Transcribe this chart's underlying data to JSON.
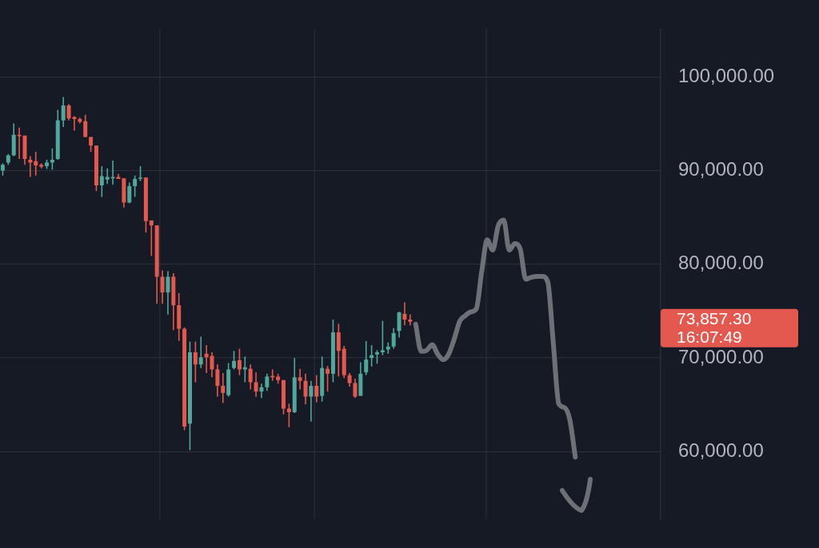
{
  "chart_data": {
    "type": "candlestick",
    "categories": [
      null,
      null,
      null,
      null,
      null,
      null,
      null,
      null,
      null,
      null,
      null,
      null,
      null,
      null,
      null,
      null,
      null,
      null,
      null,
      null,
      null,
      null,
      null,
      null,
      null,
      null,
      null,
      null,
      null,
      null,
      null,
      null,
      null,
      null,
      null,
      null,
      null,
      null,
      null,
      null,
      null,
      null,
      null,
      null,
      null,
      null,
      null,
      null,
      null,
      null,
      null,
      null,
      null,
      null,
      null,
      null,
      null,
      null,
      null,
      null,
      null,
      null,
      null,
      null,
      null,
      null,
      null,
      null,
      null,
      null,
      null,
      null,
      null,
      null,
      null,
      null,
      null,
      null,
      null,
      null,
      null,
      null,
      null,
      null,
      null,
      null,
      null,
      null,
      null,
      null,
      null,
      null,
      null,
      null,
      null,
      null,
      null,
      null,
      null,
      null,
      null,
      null,
      null,
      null,
      null,
      null,
      null,
      null,
      null,
      null,
      null,
      null,
      null,
      null,
      null,
      null,
      null,
      null,
      null,
      null
    ],
    "ohlc": [
      [
        89990,
        90770,
        89470,
        90620
      ],
      [
        90850,
        91760,
        90620,
        91610
      ],
      [
        91610,
        95030,
        91530,
        93810
      ],
      [
        93810,
        94580,
        91230,
        93660
      ],
      [
        93730,
        93730,
        90620,
        91230
      ],
      [
        91150,
        91530,
        89320,
        90850
      ],
      [
        91000,
        91990,
        89470,
        90540
      ],
      [
        90620,
        90770,
        90240,
        90390
      ],
      [
        90470,
        91150,
        90160,
        90850
      ],
      [
        90850,
        92370,
        90080,
        91150
      ],
      [
        91230,
        96480,
        91150,
        95340
      ],
      [
        95340,
        97850,
        94650,
        96940
      ],
      [
        96940,
        97090,
        95340,
        95570
      ],
      [
        95720,
        95800,
        94270,
        95490
      ],
      [
        95490,
        95640,
        95030,
        95190
      ],
      [
        95260,
        95950,
        93580,
        93580
      ],
      [
        93580,
        93580,
        91990,
        92670
      ],
      [
        92670,
        92670,
        87800,
        88410
      ],
      [
        88410,
        90470,
        87190,
        89400
      ],
      [
        89030,
        90240,
        88560,
        89320
      ],
      [
        89170,
        91070,
        88480,
        89320
      ],
      [
        89320,
        89630,
        89090,
        89090
      ],
      [
        89170,
        89170,
        86050,
        86580
      ],
      [
        86580,
        88710,
        86500,
        88330
      ],
      [
        88330,
        89470,
        87190,
        89090
      ],
      [
        89170,
        90470,
        88860,
        89250
      ],
      [
        89250,
        89250,
        83380,
        84600
      ],
      [
        84670,
        84670,
        80870,
        84140
      ],
      [
        84140,
        84140,
        75770,
        78660
      ],
      [
        78660,
        79340,
        75770,
        76980
      ],
      [
        76980,
        79270,
        74620,
        78660
      ],
      [
        78660,
        79040,
        72950,
        75610
      ],
      [
        75610,
        76910,
        71800,
        73100
      ],
      [
        73100,
        73250,
        62280,
        62670
      ],
      [
        62970,
        71730,
        60150,
        70590
      ],
      [
        70590,
        71730,
        67390,
        69290
      ],
      [
        69290,
        72260,
        68910,
        70050
      ],
      [
        70430,
        71350,
        68380,
        70050
      ],
      [
        70210,
        70590,
        67920,
        68760
      ],
      [
        68760,
        69290,
        65860,
        67010
      ],
      [
        67010,
        68380,
        65180,
        66250
      ],
      [
        66020,
        69440,
        65860,
        68760
      ],
      [
        68910,
        70740,
        68760,
        69670
      ],
      [
        69750,
        70970,
        68150,
        68760
      ],
      [
        68760,
        70130,
        67390,
        68990
      ],
      [
        68830,
        69290,
        66630,
        67390
      ],
      [
        67390,
        68450,
        65860,
        66400
      ],
      [
        66400,
        67240,
        65710,
        66860
      ],
      [
        66860,
        68300,
        66480,
        68000
      ],
      [
        68070,
        68760,
        67540,
        67920
      ],
      [
        68000,
        68300,
        67240,
        67620
      ],
      [
        67620,
        67620,
        63960,
        64570
      ],
      [
        64570,
        65100,
        62590,
        64190
      ],
      [
        64190,
        69980,
        64110,
        67920
      ],
      [
        67920,
        68830,
        66630,
        67540
      ],
      [
        67540,
        68300,
        65030,
        65860
      ],
      [
        65860,
        67540,
        63200,
        67010
      ],
      [
        67010,
        68150,
        65250,
        65860
      ],
      [
        65940,
        70130,
        65330,
        68910
      ],
      [
        68830,
        69140,
        66400,
        68300
      ],
      [
        68300,
        74090,
        67390,
        72720
      ],
      [
        72720,
        73630,
        68000,
        70740
      ],
      [
        70970,
        71270,
        67840,
        68150
      ],
      [
        68150,
        68380,
        66930,
        67310
      ],
      [
        67310,
        67770,
        65710,
        65860
      ],
      [
        65940,
        69520,
        65940,
        68300
      ],
      [
        68450,
        71800,
        68150,
        69820
      ],
      [
        69980,
        71350,
        69060,
        70280
      ],
      [
        70360,
        70810,
        69370,
        70590
      ],
      [
        70590,
        73940,
        70280,
        70810
      ],
      [
        70890,
        71650,
        70430,
        71200
      ],
      [
        71200,
        73180,
        70970,
        72640
      ],
      [
        72870,
        74930,
        72180,
        74850
      ],
      [
        74700,
        75920,
        73480,
        74090
      ],
      [
        74090,
        74620,
        73480,
        73857.3
      ],
      null,
      null,
      null,
      null,
      null,
      null,
      null,
      null,
      null,
      null,
      null,
      null,
      null,
      null,
      null,
      null,
      null,
      null,
      null,
      null,
      null,
      null,
      null,
      null,
      null,
      null,
      null,
      null,
      null,
      null,
      null,
      null,
      null,
      null,
      null,
      null,
      null,
      null,
      null,
      null,
      null,
      null,
      null,
      null,
      null
    ],
    "colors": [
      "#4fa89b",
      "#4fa89b",
      "#4fa89b",
      "#e4594f",
      "#e4594f",
      "#e4594f",
      "#e4594f",
      "#e4594f",
      "#4fa89b",
      "#4fa89b",
      "#4fa89b",
      "#4fa89b",
      "#e4594f",
      "#e4594f",
      "#e4594f",
      "#e4594f",
      "#e4594f",
      "#e4594f",
      "#4fa89b",
      "#4fa89b",
      "#4fa89b",
      "#e4594f",
      "#e4594f",
      "#4fa89b",
      "#4fa89b",
      "#4fa89b",
      "#e4594f",
      "#e4594f",
      "#e4594f",
      "#e4594f",
      "#4fa89b",
      "#e4594f",
      "#e4594f",
      "#e4594f",
      "#4fa89b",
      "#e4594f",
      "#4fa89b",
      "#e4594f",
      "#e4594f",
      "#e4594f",
      "#e4594f",
      "#4fa89b",
      "#4fa89b",
      "#e4594f",
      "#4fa89b",
      "#e4594f",
      "#e4594f",
      "#4fa89b",
      "#4fa89b",
      "#e4594f",
      "#e4594f",
      "#e4594f",
      "#e4594f",
      "#4fa89b",
      "#e4594f",
      "#e4594f",
      "#4fa89b",
      "#e4594f",
      "#4fa89b",
      "#e4594f",
      "#4fa89b",
      "#e4594f",
      "#e4594f",
      "#e4594f",
      "#e4594f",
      "#4fa89b",
      "#4fa89b",
      "#4fa89b",
      "#4fa89b",
      "#4fa89b",
      "#4fa89b",
      "#4fa89b",
      "#4fa89b",
      "#e4594f",
      "#e4594f",
      null,
      null,
      null,
      null,
      null,
      null,
      null,
      null,
      null,
      null,
      null,
      null,
      null,
      null,
      null,
      null,
      null,
      null,
      null,
      null,
      null,
      null,
      null,
      null,
      null,
      null,
      null,
      null,
      null,
      null,
      null,
      null,
      null,
      null,
      null,
      null,
      null,
      null,
      null,
      null,
      null,
      null,
      null,
      null,
      null
    ],
    "series": [
      {
        "type": "line",
        "color": "#6d7075",
        "values": [
          null,
          null,
          null,
          null,
          null,
          null,
          null,
          null,
          null,
          null,
          null,
          null,
          null,
          null,
          null,
          null,
          null,
          null,
          null,
          null,
          null,
          null,
          null,
          null,
          null,
          null,
          null,
          null,
          null,
          null,
          null,
          null,
          null,
          null,
          null,
          null,
          null,
          null,
          null,
          null,
          null,
          null,
          null,
          null,
          null,
          null,
          null,
          null,
          null,
          null,
          null,
          null,
          null,
          null,
          null,
          null,
          null,
          null,
          null,
          null,
          null,
          null,
          null,
          null,
          null,
          null,
          null,
          null,
          null,
          null,
          null,
          null,
          null,
          null,
          null,
          73600,
          70700,
          70800,
          71400,
          70400,
          69800,
          70400,
          72000,
          73900,
          74500,
          74900,
          75200,
          79200,
          82600,
          81500,
          84100,
          84700,
          81500,
          82200,
          81600,
          78400,
          78600,
          78700,
          78700,
          78100,
          71600,
          65100,
          64700,
          63400,
          59400,
          null,
          null,
          null,
          null,
          null,
          null,
          null,
          null,
          null,
          null,
          null,
          null,
          null,
          null,
          null
        ]
      }
    ],
    "marker": "none",
    "ylim": [
      52800,
      105100
    ],
    "yticks": [
      {
        "value": 60000,
        "label": "60,000.00"
      },
      {
        "value": 70000,
        "label": "70,000.00"
      },
      {
        "value": 80000,
        "label": "80,000.00"
      },
      {
        "value": 90000,
        "label": "90,000.00"
      },
      {
        "value": 100000,
        "label": "100,000.00"
      }
    ],
    "tick_labels": "y",
    "grid": true,
    "annotations": [
      "73,857.30",
      "16:07:49"
    ]
  }
}
